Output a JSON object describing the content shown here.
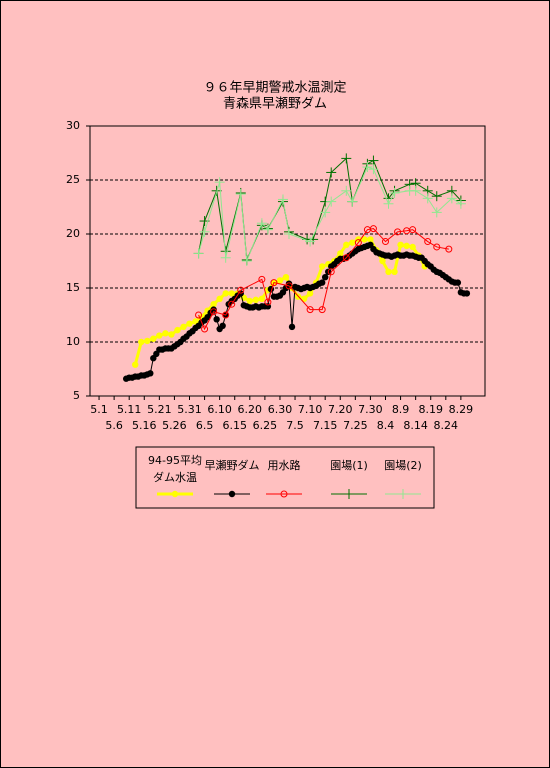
{
  "chart_data": {
    "type": "line",
    "title": "９６年早期警戒水温測定",
    "subtitle": "青森県早瀬野ダム",
    "xlim": [
      -3,
      128
    ],
    "xticks": [
      {
        "value": 0,
        "label": "5.1"
      },
      {
        "value": 5,
        "label": "5.6"
      },
      {
        "value": 10,
        "label": "5.11"
      },
      {
        "value": 15,
        "label": "5.16"
      },
      {
        "value": 20,
        "label": "5.21"
      },
      {
        "value": 25,
        "label": "5.26"
      },
      {
        "value": 30,
        "label": "5.31"
      },
      {
        "value": 35,
        "label": "6.5"
      },
      {
        "value": 40,
        "label": "6.10"
      },
      {
        "value": 45,
        "label": "6.15"
      },
      {
        "value": 50,
        "label": "6.20"
      },
      {
        "value": 55,
        "label": "6.25"
      },
      {
        "value": 60,
        "label": "6.30"
      },
      {
        "value": 65,
        "label": "7.5"
      },
      {
        "value": 70,
        "label": "7.10"
      },
      {
        "value": 75,
        "label": "7.15"
      },
      {
        "value": 80,
        "label": "7.20"
      },
      {
        "value": 85,
        "label": "7.25"
      },
      {
        "value": 90,
        "label": "7.30"
      },
      {
        "value": 95,
        "label": "8.4"
      },
      {
        "value": 100,
        "label": "8.9"
      },
      {
        "value": 105,
        "label": "8.14"
      },
      {
        "value": 110,
        "label": "8.19"
      },
      {
        "value": 115,
        "label": "8.24"
      },
      {
        "value": 120,
        "label": "8.29"
      }
    ],
    "ylim": [
      5,
      30
    ],
    "yticks": [
      5,
      10,
      15,
      20,
      25,
      30
    ],
    "grid": true,
    "series": [
      {
        "name": "94-95平均\nダム水温",
        "color": "#ffff00",
        "marker": "dot",
        "x": [
          12,
          14,
          16,
          18,
          20,
          22,
          24,
          26,
          28,
          30,
          32,
          34,
          36,
          38,
          40,
          42,
          44,
          46,
          48,
          50,
          52,
          54,
          56,
          58,
          60,
          62,
          64,
          66,
          68,
          70,
          72,
          74,
          76,
          78,
          80,
          82,
          84,
          86,
          88,
          90,
          92,
          94,
          96,
          98,
          100,
          102,
          104,
          106,
          108
        ],
        "values": [
          7.9,
          10.0,
          10.1,
          10.3,
          10.6,
          10.8,
          10.7,
          11.1,
          11.4,
          11.7,
          11.9,
          12.3,
          12.9,
          13.5,
          14.0,
          14.5,
          14.5,
          14.5,
          14.1,
          13.8,
          13.9,
          14.0,
          14.8,
          15.5,
          15.7,
          16.0,
          15.0,
          14.2,
          14.0,
          14.5,
          15.5,
          17.0,
          17.2,
          17.5,
          18.2,
          19.0,
          19.2,
          19.5,
          19.5,
          19.5,
          18.5,
          17.5,
          16.5,
          16.5,
          19.0,
          18.9,
          18.8,
          18.0,
          17.0
        ]
      },
      {
        "name": "早瀬野ダム",
        "color": "#000000",
        "marker": "dot",
        "x": [
          9,
          10,
          11,
          12,
          13,
          14,
          15,
          16,
          17,
          18,
          19,
          20,
          21,
          22,
          23,
          24,
          25,
          26,
          27,
          28,
          29,
          30,
          31,
          32,
          33,
          34,
          35,
          36,
          37,
          38,
          39,
          40,
          41,
          42,
          43,
          44,
          45,
          46,
          47,
          48,
          49,
          50,
          51,
          52,
          53,
          54,
          55,
          56,
          57,
          58,
          59,
          60,
          61,
          62,
          63,
          64,
          65,
          66,
          67,
          68,
          69,
          70,
          71,
          72,
          73,
          74,
          75,
          76,
          77,
          78,
          79,
          80,
          81,
          82,
          83,
          84,
          85,
          86,
          87,
          88,
          89,
          90,
          91,
          92,
          93,
          94,
          95,
          96,
          97,
          98,
          99,
          100,
          101,
          102,
          103,
          104,
          105,
          106,
          107,
          108,
          109,
          110,
          111,
          112,
          113,
          114,
          115,
          116,
          117,
          118,
          119,
          120,
          121,
          122
        ],
        "values": [
          6.6,
          6.7,
          6.7,
          6.8,
          6.8,
          6.9,
          6.9,
          7.0,
          7.1,
          8.5,
          8.9,
          9.3,
          9.3,
          9.4,
          9.4,
          9.4,
          9.6,
          9.8,
          10.0,
          10.3,
          10.5,
          10.8,
          11.0,
          11.3,
          11.5,
          11.8,
          12.0,
          12.3,
          12.7,
          13.0,
          12.1,
          11.2,
          11.5,
          12.5,
          13.5,
          13.8,
          14.0,
          14.3,
          14.5,
          13.4,
          13.3,
          13.2,
          13.2,
          13.3,
          13.2,
          13.3,
          13.3,
          13.3,
          14.9,
          14.2,
          14.2,
          14.3,
          14.6,
          15.0,
          15.4,
          11.4,
          15.1,
          15.0,
          14.9,
          15.0,
          15.1,
          15.0,
          15.1,
          15.2,
          15.4,
          15.5,
          16.0,
          16.5,
          17.0,
          17.2,
          17.5,
          17.7,
          17.7,
          17.8,
          18.0,
          18.2,
          18.4,
          18.6,
          18.7,
          18.8,
          18.9,
          19.0,
          18.6,
          18.3,
          18.2,
          18.1,
          18.0,
          18.0,
          17.9,
          18.0,
          18.1,
          18.0,
          18.0,
          18.1,
          18.0,
          18.0,
          17.9,
          17.8,
          17.8,
          17.5,
          17.2,
          17.0,
          16.7,
          16.5,
          16.4,
          16.2,
          16.0,
          15.8,
          15.6,
          15.5,
          15.5,
          14.6,
          14.5,
          14.5
        ]
      },
      {
        "name": "用水路",
        "color": "#ff0000",
        "marker": "circle",
        "x": [
          33,
          35,
          38,
          42,
          44,
          47,
          54,
          56,
          58,
          63,
          70,
          74,
          77,
          82,
          86,
          89,
          91,
          95,
          99,
          102,
          104,
          109,
          112,
          116
        ],
        "values": [
          12.5,
          11.2,
          12.8,
          12.5,
          13.5,
          14.8,
          15.8,
          13.7,
          15.5,
          15.2,
          13.0,
          13.0,
          16.5,
          17.8,
          19.2,
          20.4,
          20.5,
          19.3,
          20.2,
          20.3,
          20.4,
          19.3,
          18.8,
          18.6
        ]
      },
      {
        "name": "園場(1)",
        "color": "#007000",
        "marker": "plus",
        "x": [
          33,
          35,
          39,
          42,
          47,
          49,
          54,
          56,
          61,
          63,
          69,
          71,
          75,
          77,
          82,
          84,
          89,
          91,
          96,
          98,
          103,
          105,
          109,
          112,
          117,
          120
        ],
        "values": [
          18.2,
          21.2,
          24.0,
          18.4,
          23.8,
          17.6,
          20.8,
          20.5,
          23.0,
          20.2,
          19.5,
          19.5,
          23.0,
          25.7,
          27.0,
          23.0,
          26.5,
          26.8,
          23.3,
          24.0,
          24.6,
          24.7,
          24.0,
          23.5,
          24.0,
          23.1
        ]
      },
      {
        "name": "園場(2)",
        "color": "#90e890",
        "marker": "plus",
        "x": [
          33,
          35,
          40,
          42,
          47,
          49,
          54,
          56,
          61,
          63,
          70,
          75,
          77,
          82,
          84,
          89,
          91,
          96,
          98,
          103,
          105,
          109,
          112,
          117,
          120
        ],
        "values": [
          18.2,
          20.2,
          24.8,
          17.8,
          23.7,
          17.5,
          21.0,
          20.4,
          23.2,
          20.0,
          19.3,
          22.0,
          23.0,
          24.0,
          23.0,
          26.2,
          26.0,
          22.8,
          23.8,
          24.0,
          24.0,
          23.3,
          22.0,
          23.3,
          22.8
        ]
      }
    ]
  }
}
